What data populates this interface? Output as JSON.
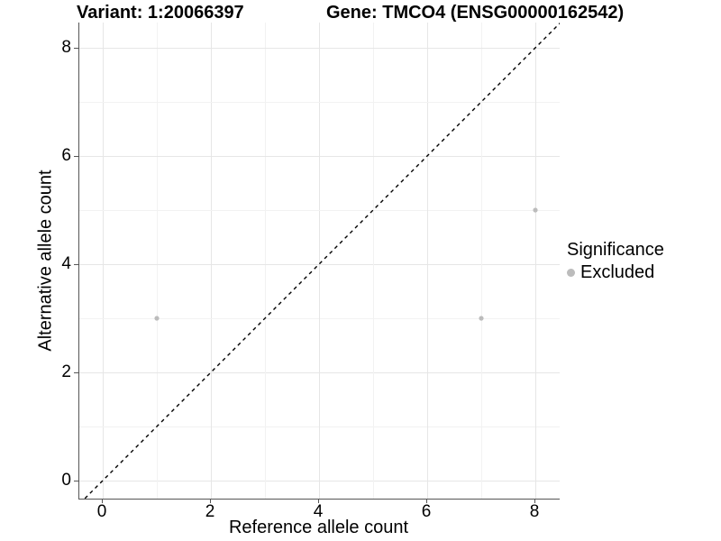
{
  "chart_data": {
    "type": "scatter",
    "title_left": "Variant: 1:20066397",
    "title_right": "Gene: TMCO4 (ENSG00000162542)",
    "xlabel": "Reference allele count",
    "ylabel": "Alternative allele count",
    "xlim": [
      -0.43,
      8.45
    ],
    "ylim": [
      -0.33,
      8.47
    ],
    "x_ticks": [
      0,
      2,
      4,
      6,
      8
    ],
    "y_ticks": [
      0,
      2,
      4,
      6,
      8
    ],
    "grid": "major gridlines at even integers, minor at odd integers, on for both axes",
    "series": [
      {
        "name": "Excluded",
        "points": [
          {
            "x": 1,
            "y": 3
          },
          {
            "x": 7,
            "y": 3
          },
          {
            "x": 8,
            "y": 5
          }
        ]
      }
    ],
    "reference_line": {
      "kind": "identity y = x",
      "style": "dashed",
      "color": "#000000"
    },
    "legend": {
      "title": "Significance",
      "position": "right",
      "entries": [
        {
          "label": "Excluded",
          "color": "#bcbcbc"
        }
      ]
    }
  },
  "colors": {
    "background": "#ffffff",
    "axis_line": "#555555",
    "grid_major": "#e6e6e6",
    "grid_minor": "#f2f2f2",
    "point_excluded": "#bcbcbc",
    "text": "#000000",
    "identity_line": "#000000"
  }
}
